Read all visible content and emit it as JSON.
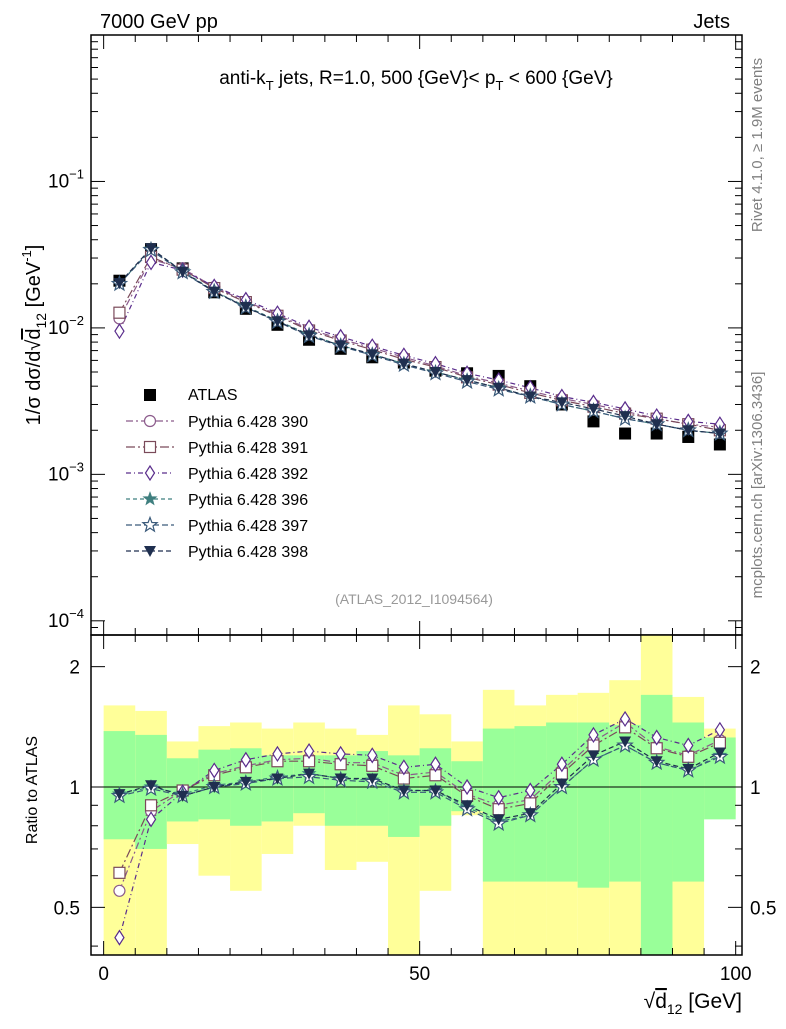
{
  "header": {
    "left": "7000 GeV pp",
    "right": "Jets",
    "right_side_top": "Rivet 4.1.0, ≥ 1.9M events",
    "right_side_bottom": "mcplots.cern.ch [arXiv:1306.3436]",
    "analysis_id": "(ATLAS_2012_I1094564)"
  },
  "colors": {
    "atlas": "#000000",
    "p390": "#8b5a8b",
    "p391": "#7a4a5a",
    "p392": "#5a2d8c",
    "p396": "#3f7f7f",
    "p397": "#3a5a7a",
    "p398": "#1f2f4f",
    "band_outer": "#ffff99",
    "band_inner": "#99ff99"
  },
  "chart_data": [
    {
      "type": "scatter",
      "panel": "main",
      "title": "anti-k_T jets, R=1.0, 500 {GeV}< p_T < 600 {GeV}",
      "title_parts": {
        "t1": "anti-k",
        "t1_sub": "T",
        "t2": " jets, R=1.0, 500 {GeV}< p",
        "t2_sub": "T",
        "t3": " < 600 {GeV}"
      },
      "ylabel": "1/σ dσ/d√d12 [GeV⁻¹]",
      "ylabel_parts": {
        "a": "1/σ dσ/d",
        "sqrt": "d",
        "sub": "12",
        "unit": " [GeV",
        "sup": "-1",
        "close": "]"
      },
      "yscale": "log",
      "ylim": [
        8e-05,
        1.0
      ],
      "xlim": [
        -2,
        101
      ],
      "y_tick_labels": [
        {
          "value": 0.1,
          "mant": "10",
          "exp": "−1"
        },
        {
          "value": 0.01,
          "mant": "10",
          "exp": "−2"
        },
        {
          "value": 0.001,
          "mant": "10",
          "exp": "−3"
        },
        {
          "value": 0.0001,
          "mant": "10",
          "exp": "−4"
        }
      ],
      "x": [
        2.5,
        7.5,
        12.5,
        17.5,
        22.5,
        27.5,
        32.5,
        37.5,
        42.5,
        47.5,
        52.5,
        57.5,
        62.5,
        67.5,
        72.5,
        77.5,
        82.5,
        87.5,
        92.5,
        97.5
      ],
      "series": [
        {
          "name": "ATLAS",
          "key": "atlas",
          "marker": "square",
          "values": [
            0.021,
            0.0345,
            0.0255,
            0.0175,
            0.0135,
            0.0105,
            0.0083,
            0.0072,
            0.0063,
            0.0058,
            0.0051,
            0.0049,
            0.0047,
            0.004,
            0.003,
            0.0023,
            0.0019,
            0.0019,
            0.0018,
            0.0016
          ]
        },
        {
          "name": "Pythia 6.428 390",
          "key": "p390",
          "marker": "circle-open",
          "values": [
            0.0116,
            0.0295,
            0.0255,
            0.019,
            0.0152,
            0.0123,
            0.0098,
            0.0084,
            0.0073,
            0.0063,
            0.0055,
            0.0047,
            0.0042,
            0.0037,
            0.0033,
            0.003,
            0.0027,
            0.0024,
            0.0022,
            0.0021
          ]
        },
        {
          "name": "Pythia 6.428 391",
          "key": "p391",
          "marker": "square-open",
          "values": [
            0.0127,
            0.0305,
            0.025,
            0.0187,
            0.015,
            0.0121,
            0.0096,
            0.0082,
            0.0071,
            0.0061,
            0.0054,
            0.0046,
            0.0041,
            0.0036,
            0.0032,
            0.0029,
            0.0026,
            0.0024,
            0.0022,
            0.002
          ]
        },
        {
          "name": "Pythia 6.428 392",
          "key": "p392",
          "marker": "diamond-open",
          "values": [
            0.0095,
            0.028,
            0.0248,
            0.0192,
            0.0156,
            0.0126,
            0.0101,
            0.0087,
            0.0075,
            0.0065,
            0.0057,
            0.0049,
            0.0044,
            0.0039,
            0.0034,
            0.0031,
            0.0028,
            0.0025,
            0.0023,
            0.0022
          ]
        },
        {
          "name": "Pythia 6.428 396",
          "key": "p396",
          "marker": "star",
          "values": [
            0.02,
            0.0345,
            0.0245,
            0.0178,
            0.014,
            0.0112,
            0.009,
            0.0076,
            0.0066,
            0.0057,
            0.005,
            0.0044,
            0.0039,
            0.0034,
            0.003,
            0.0027,
            0.0024,
            0.0022,
            0.002,
            0.0019
          ]
        },
        {
          "name": "Pythia 6.428 397",
          "key": "p397",
          "marker": "star-open",
          "values": [
            0.02,
            0.034,
            0.024,
            0.0176,
            0.0138,
            0.011,
            0.0088,
            0.0075,
            0.0065,
            0.0056,
            0.0049,
            0.0043,
            0.0038,
            0.0034,
            0.003,
            0.0027,
            0.0024,
            0.0022,
            0.002,
            0.0019
          ]
        },
        {
          "name": "Pythia 6.428 398",
          "key": "p398",
          "marker": "triangle-down",
          "values": [
            0.0202,
            0.035,
            0.0242,
            0.0177,
            0.0139,
            0.0111,
            0.0089,
            0.0076,
            0.0066,
            0.0057,
            0.005,
            0.0044,
            0.0039,
            0.0034,
            0.0031,
            0.0028,
            0.0025,
            0.0022,
            0.002,
            0.0019
          ]
        }
      ],
      "legend_position": "middle-left"
    },
    {
      "type": "scatter",
      "panel": "ratio",
      "ylabel": "Ratio to ATLAS",
      "xlabel": "√d12 [GeV]",
      "xlabel_parts": {
        "sqrt": "d",
        "sub": "12",
        "unit": " [GeV]"
      },
      "yscale": "log",
      "ylim": [
        0.38,
        2.4
      ],
      "xlim": [
        -2,
        101
      ],
      "y_tick_labels": [
        {
          "value": 2,
          "text": "2"
        },
        {
          "value": 1,
          "text": "1"
        },
        {
          "value": 0.5,
          "text": "0.5"
        }
      ],
      "x_tick_labels": [
        {
          "value": 0,
          "text": "0"
        },
        {
          "value": 50,
          "text": "50"
        },
        {
          "value": 100,
          "text": "100"
        }
      ],
      "bins": [
        [
          0,
          5
        ],
        [
          5,
          10
        ],
        [
          10,
          15
        ],
        [
          15,
          20
        ],
        [
          20,
          25
        ],
        [
          25,
          30
        ],
        [
          30,
          35
        ],
        [
          35,
          40
        ],
        [
          40,
          45
        ],
        [
          45,
          50
        ],
        [
          50,
          55
        ],
        [
          55,
          60
        ],
        [
          60,
          65
        ],
        [
          65,
          70
        ],
        [
          70,
          75
        ],
        [
          75,
          80
        ],
        [
          80,
          85
        ],
        [
          85,
          90
        ],
        [
          90,
          95
        ],
        [
          95,
          100
        ]
      ],
      "band_outer": [
        [
          0.35,
          1.6
        ],
        [
          0.35,
          1.55
        ],
        [
          0.72,
          1.3
        ],
        [
          0.6,
          1.42
        ],
        [
          0.55,
          1.45
        ],
        [
          0.68,
          1.4
        ],
        [
          0.8,
          1.45
        ],
        [
          0.62,
          1.4
        ],
        [
          0.65,
          1.35
        ],
        [
          0.35,
          1.6
        ],
        [
          0.55,
          1.52
        ],
        [
          0.85,
          1.3
        ],
        [
          0.35,
          1.75
        ],
        [
          0.35,
          1.6
        ],
        [
          0.35,
          1.7
        ],
        [
          0.35,
          1.72
        ],
        [
          0.35,
          1.85
        ],
        [
          0.35,
          2.5
        ],
        [
          0.35,
          1.68
        ],
        [
          0.85,
          1.4
        ]
      ],
      "band_inner": [
        [
          0.74,
          1.38
        ],
        [
          0.7,
          1.35
        ],
        [
          0.82,
          1.18
        ],
        [
          0.83,
          1.24
        ],
        [
          0.8,
          1.25
        ],
        [
          0.82,
          1.2
        ],
        [
          0.86,
          1.2
        ],
        [
          0.8,
          1.2
        ],
        [
          0.8,
          1.23
        ],
        [
          0.75,
          1.2
        ],
        [
          0.8,
          1.25
        ],
        [
          0.87,
          1.16
        ],
        [
          0.58,
          1.4
        ],
        [
          0.58,
          1.42
        ],
        [
          0.58,
          1.45
        ],
        [
          0.56,
          1.45
        ],
        [
          0.58,
          1.43
        ],
        [
          0.38,
          1.7
        ],
        [
          0.58,
          1.45
        ],
        [
          0.83,
          1.33
        ]
      ],
      "series": [
        {
          "name": "Pythia 6.428 390",
          "key": "p390",
          "marker": "circle-open",
          "values": [
            0.55,
            0.87,
            0.98,
            1.08,
            1.13,
            1.17,
            1.18,
            1.15,
            1.15,
            1.07,
            1.09,
            0.96,
            0.9,
            0.93,
            1.1,
            1.3,
            1.45,
            1.26,
            1.2,
            1.31
          ]
        },
        {
          "name": "Pythia 6.428 391",
          "key": "p391",
          "marker": "square-open",
          "values": [
            0.61,
            0.9,
            0.98,
            1.07,
            1.12,
            1.16,
            1.16,
            1.14,
            1.13,
            1.05,
            1.07,
            0.95,
            0.88,
            0.91,
            1.08,
            1.27,
            1.41,
            1.25,
            1.19,
            1.29
          ]
        },
        {
          "name": "Pythia 6.428 392",
          "key": "p392",
          "marker": "diamond-open",
          "values": [
            0.42,
            0.83,
            0.97,
            1.1,
            1.17,
            1.21,
            1.23,
            1.21,
            1.2,
            1.12,
            1.14,
            1.0,
            0.94,
            0.98,
            1.14,
            1.35,
            1.48,
            1.33,
            1.27,
            1.39
          ]
        },
        {
          "name": "Pythia 6.428 396",
          "key": "p396",
          "marker": "star",
          "values": [
            0.96,
            1.0,
            0.96,
            1.01,
            1.03,
            1.06,
            1.08,
            1.05,
            1.04,
            0.98,
            0.98,
            0.89,
            0.82,
            0.85,
            1.0,
            1.17,
            1.27,
            1.15,
            1.1,
            1.2
          ]
        },
        {
          "name": "Pythia 6.428 397",
          "key": "p397",
          "marker": "star-open",
          "values": [
            0.95,
            0.99,
            0.95,
            1.0,
            1.02,
            1.05,
            1.06,
            1.04,
            1.03,
            0.97,
            0.97,
            0.88,
            0.81,
            0.85,
            1.0,
            1.17,
            1.27,
            1.15,
            1.1,
            1.19
          ]
        },
        {
          "name": "Pythia 6.428 398",
          "key": "p398",
          "marker": "triangle-down",
          "values": [
            0.96,
            1.01,
            0.95,
            1.0,
            1.03,
            1.05,
            1.08,
            1.05,
            1.05,
            0.98,
            0.98,
            0.9,
            0.83,
            0.86,
            1.02,
            1.2,
            1.3,
            1.16,
            1.11,
            1.22
          ]
        }
      ]
    }
  ]
}
